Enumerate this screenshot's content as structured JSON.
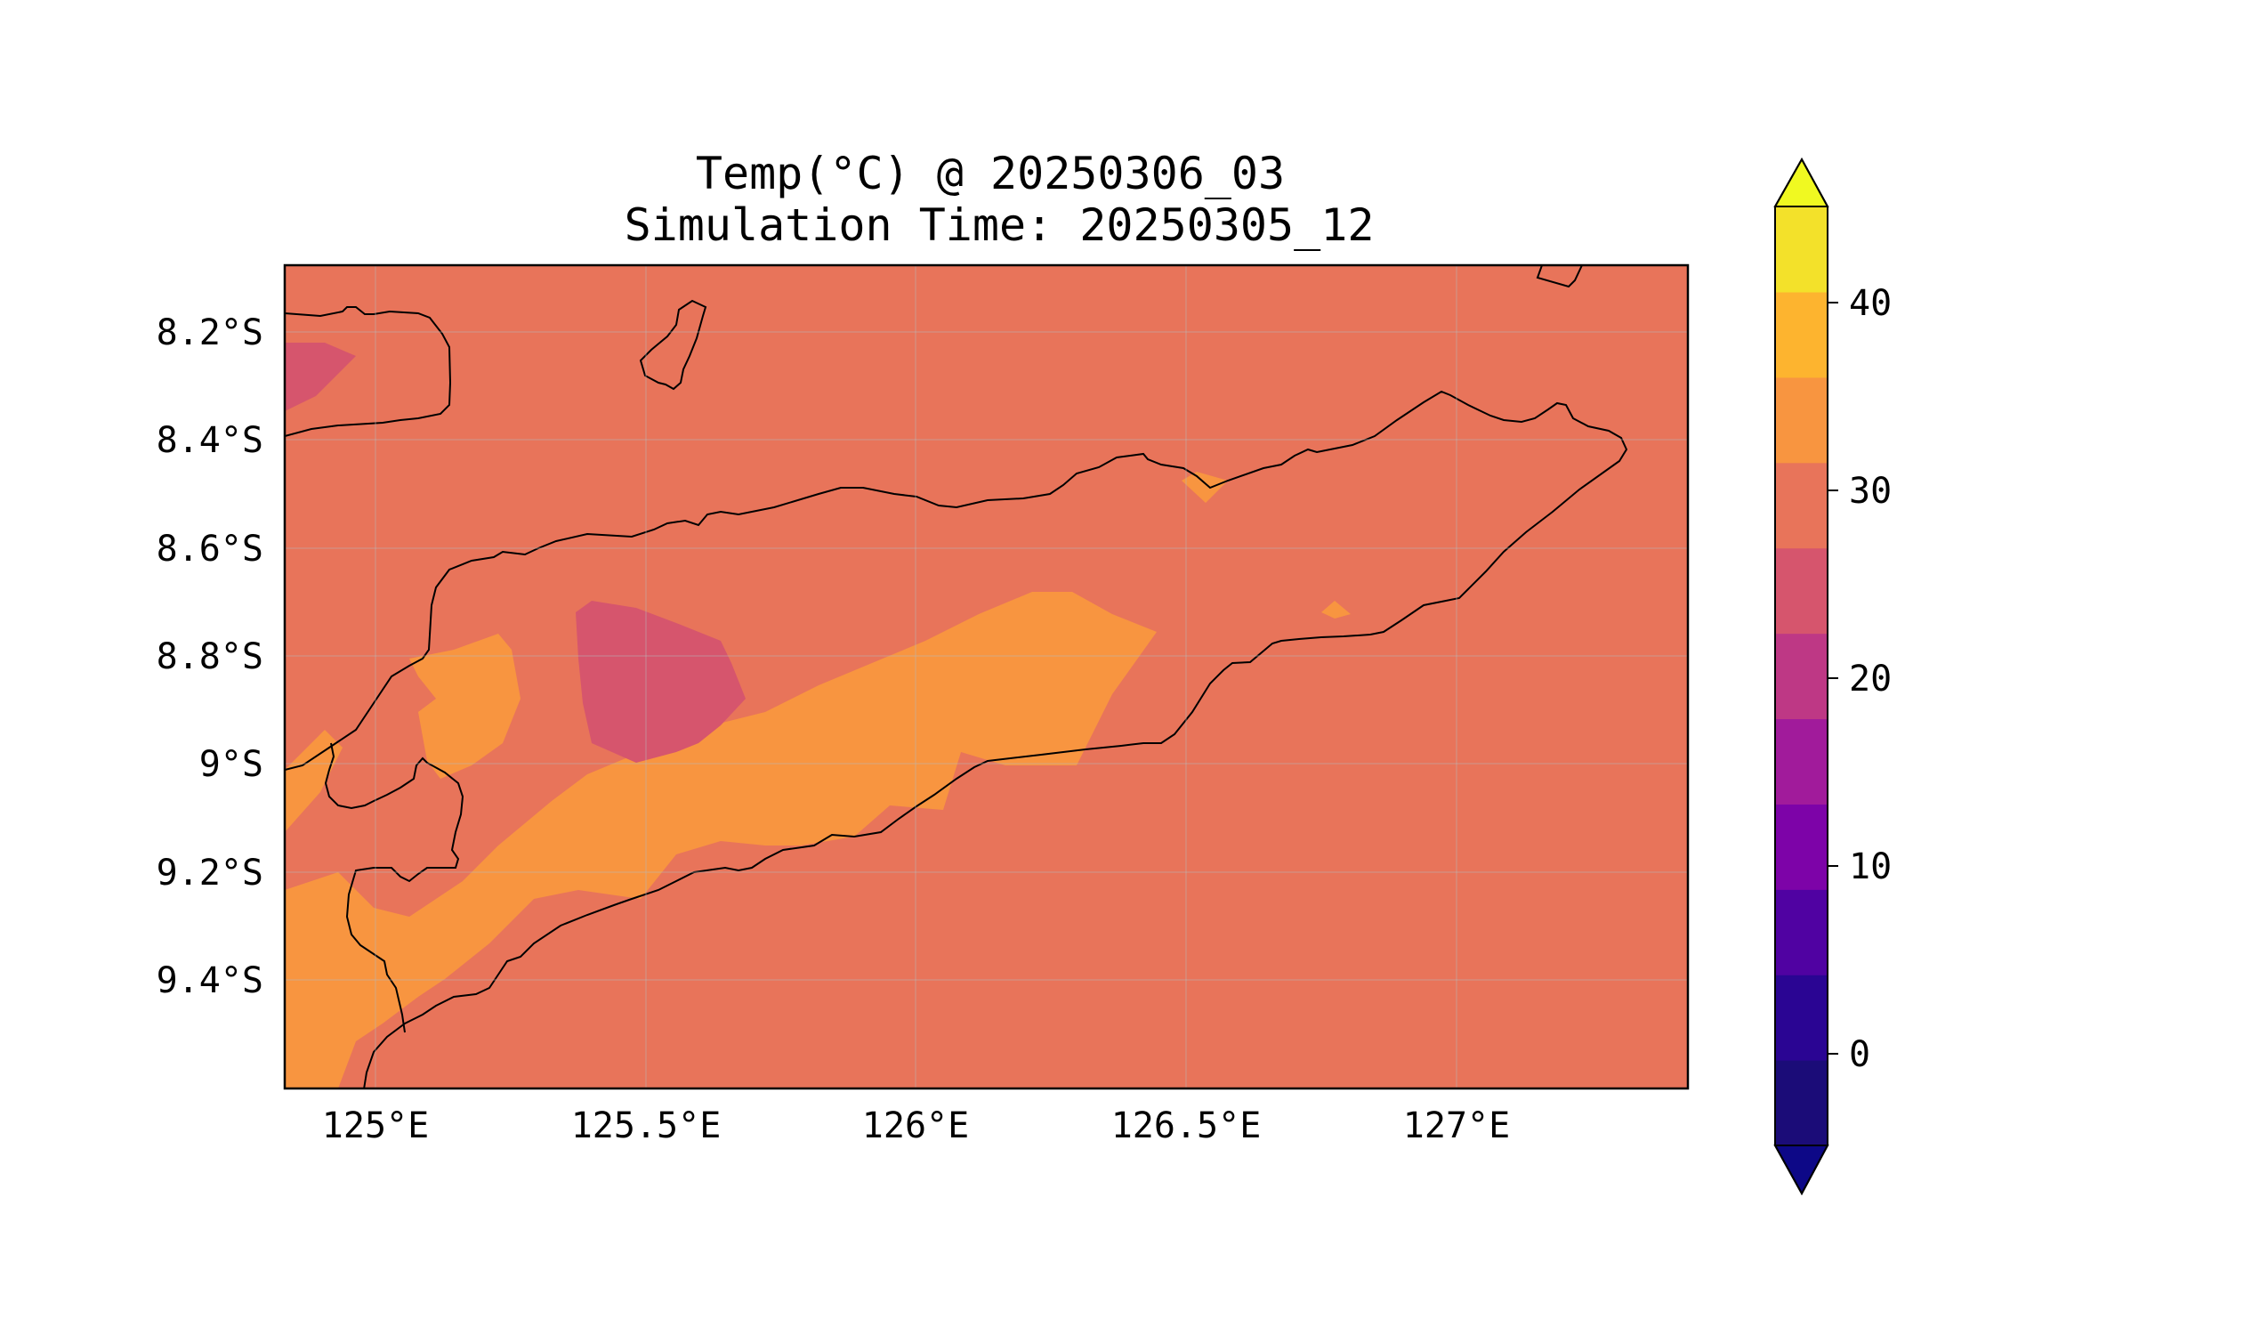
{
  "title": {
    "line1": "Temp(°C) @ 20250306_03",
    "line2": "Simulation Time: 20250305_12"
  },
  "map": {
    "x_tick_labels": [
      "125°E",
      "125.5°E",
      "126°E",
      "126.5°E",
      "127°E"
    ],
    "y_tick_labels": [
      "8.2°S",
      "8.4°S",
      "8.6°S",
      "8.8°S",
      "9°S",
      "9.2°S",
      "9.4°S"
    ],
    "background_color": "#e8745a"
  },
  "colorbar": {
    "tick_labels": [
      "0",
      "10",
      "20",
      "30",
      "40"
    ],
    "colors": [
      "#1b0c78",
      "#2a0593",
      "#5002a2",
      "#7d03a8",
      "#a11b9b",
      "#be3885",
      "#d6556d",
      "#e8745a",
      "#f89540",
      "#fdb42f",
      "#f3e12a"
    ],
    "min_extend_color": "#0d0887",
    "max_extend_color": "#f0f921"
  }
}
